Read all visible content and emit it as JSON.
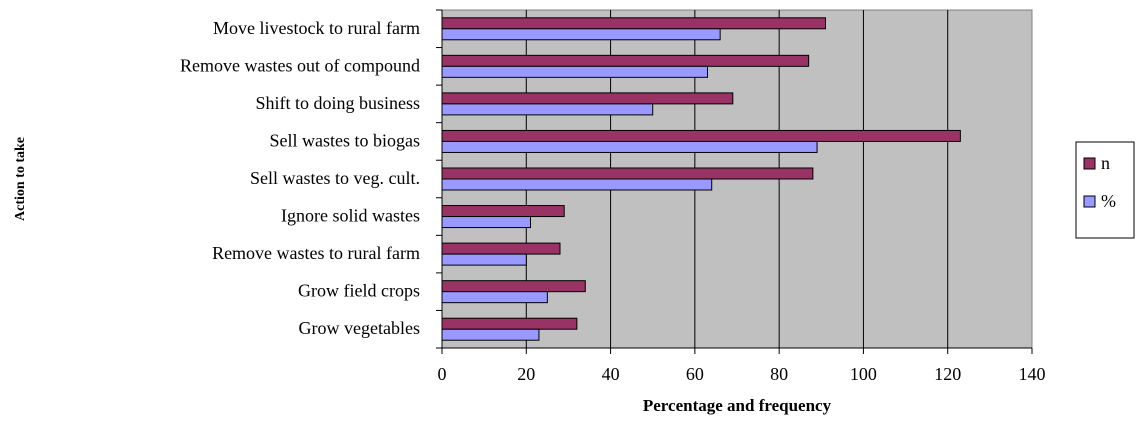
{
  "chart_data": {
    "type": "bar",
    "orientation": "horizontal",
    "categories": [
      "Move livestock to rural farm",
      "Remove wastes out of compound",
      "Shift to doing business",
      "Sell wastes to biogas",
      "Sell wastes to veg. cult.",
      "Ignore solid wastes",
      "Remove wastes to rural farm",
      "Grow field crops",
      "Grow vegetables"
    ],
    "series": [
      {
        "name": "n",
        "values": [
          91,
          87,
          69,
          123,
          88,
          29,
          28,
          34,
          32
        ],
        "color": "#993366"
      },
      {
        "name": "%",
        "values": [
          66,
          63,
          50,
          89,
          64,
          21,
          20,
          25,
          23
        ],
        "color": "#9999ff"
      }
    ],
    "xlabel": "Percentage and frequency",
    "ylabel": "Action to take",
    "xlim": [
      0,
      140
    ],
    "xticks": [
      "0",
      "20",
      "40",
      "60",
      "80",
      "100",
      "120",
      "140"
    ],
    "grid": "vertical",
    "plot_background": "#c0c0c0",
    "legend_position": "right"
  }
}
